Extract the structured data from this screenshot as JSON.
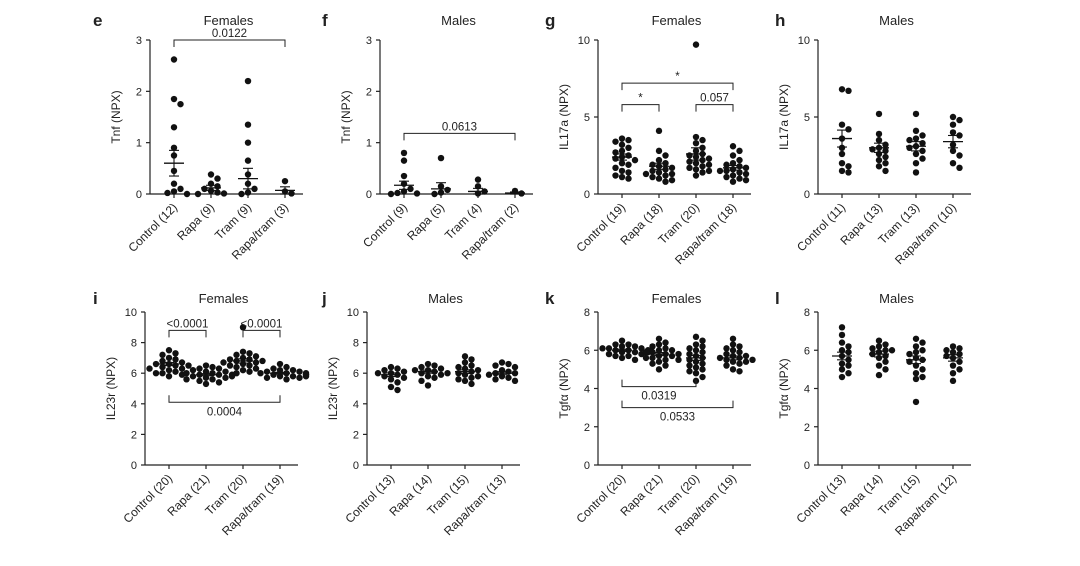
{
  "chart_data": [
    {
      "panel": "e",
      "title": "Females",
      "type": "scatter",
      "ylabel": "Tnf (NPX)",
      "ylim": [
        0,
        3
      ],
      "yticks": [
        0,
        1,
        2,
        3
      ],
      "categories": [
        "Control (12)",
        "Rapa (9)",
        "Tram (9)",
        "Rapa/tram (3)"
      ],
      "values": [
        [
          2.62,
          1.85,
          1.75,
          1.3,
          0.9,
          0.75,
          0.45,
          0.2,
          0.1,
          0.05,
          0.02,
          0.0
        ],
        [
          0.38,
          0.3,
          0.2,
          0.15,
          0.1,
          0.06,
          0.03,
          0.01,
          0.0
        ],
        [
          2.2,
          1.35,
          1.0,
          0.65,
          0.38,
          0.2,
          0.1,
          0.03,
          0.0
        ],
        [
          0.25,
          0.05,
          0.01
        ]
      ],
      "means": [
        0.6,
        0.12,
        0.3,
        0.07
      ],
      "sems": [
        0.25,
        0.05,
        0.2,
        0.07
      ],
      "annotations": [
        {
          "from": 0,
          "to": 3,
          "label": "0.0122",
          "y": 3.0
        }
      ]
    },
    {
      "panel": "f",
      "title": "Males",
      "type": "scatter",
      "ylabel": "Tnf (NPX)",
      "ylim": [
        0,
        3
      ],
      "yticks": [
        0,
        1,
        2,
        3
      ],
      "categories": [
        "Control (9)",
        "Rapa (5)",
        "Tram (4)",
        "Rapa/tram (2)"
      ],
      "values": [
        [
          0.8,
          0.65,
          0.35,
          0.2,
          0.1,
          0.05,
          0.02,
          0.01,
          0.0
        ],
        [
          0.7,
          0.15,
          0.08,
          0.03,
          0.0
        ],
        [
          0.28,
          0.15,
          0.05,
          0.01
        ],
        [
          0.06,
          0.01
        ]
      ],
      "means": [
        0.17,
        0.1,
        0.05,
        0.02
      ],
      "sems": [
        0.08,
        0.12,
        0.06,
        0.02
      ],
      "annotations": [
        {
          "from": 0,
          "to": 3,
          "label": "0.0613",
          "y": 1.18
        }
      ]
    },
    {
      "panel": "g",
      "title": "Females",
      "type": "scatter",
      "ylabel": "IL17a (NPX)",
      "ylim": [
        0,
        10
      ],
      "yticks": [
        0,
        5,
        10
      ],
      "categories": [
        "Control (19)",
        "Rapa (18)",
        "Tram (20)",
        "Rapa/tram (18)"
      ],
      "values": [
        [
          3.6,
          3.5,
          3.4,
          3.2,
          3.0,
          2.8,
          2.7,
          2.5,
          2.4,
          2.3,
          2.2,
          2.0,
          1.9,
          1.7,
          1.5,
          1.4,
          1.2,
          1.1,
          1.0
        ],
        [
          4.1,
          2.8,
          2.5,
          2.2,
          2.0,
          1.9,
          1.8,
          1.7,
          1.6,
          1.5,
          1.4,
          1.3,
          1.3,
          1.2,
          1.1,
          1.0,
          0.9,
          0.8
        ],
        [
          9.7,
          3.7,
          3.5,
          3.3,
          3.0,
          2.8,
          2.6,
          2.5,
          2.4,
          2.3,
          2.2,
          2.1,
          2.0,
          1.9,
          1.8,
          1.7,
          1.6,
          1.5,
          1.4,
          1.2
        ],
        [
          3.1,
          2.8,
          2.5,
          2.2,
          2.0,
          1.9,
          1.8,
          1.7,
          1.6,
          1.5,
          1.5,
          1.4,
          1.3,
          1.2,
          1.1,
          1.0,
          0.9,
          0.8
        ]
      ],
      "means": [
        2.4,
        1.8,
        2.6,
        1.7
      ],
      "sems": [
        0.2,
        0.2,
        0.4,
        0.15
      ],
      "annotations": [
        {
          "from": 0,
          "to": 1,
          "label": "*",
          "y": 5.8
        },
        {
          "from": 0,
          "to": 3,
          "label": "*",
          "y": 7.2
        },
        {
          "from": 2,
          "to": 3,
          "label": "0.057",
          "y": 5.8
        }
      ]
    },
    {
      "panel": "h",
      "title": "Males",
      "type": "scatter",
      "ylabel": "IL17a (NPX)",
      "ylim": [
        0,
        10
      ],
      "yticks": [
        0,
        5,
        10
      ],
      "categories": [
        "Control (11)",
        "Rapa (13)",
        "Tram (13)",
        "Rapa/tram (10)"
      ],
      "values": [
        [
          6.8,
          6.7,
          4.5,
          4.2,
          3.6,
          3.0,
          2.6,
          2.0,
          1.8,
          1.5,
          1.4
        ],
        [
          5.2,
          3.9,
          3.5,
          3.2,
          3.0,
          2.9,
          2.8,
          2.6,
          2.4,
          2.2,
          2.0,
          1.8,
          1.5
        ],
        [
          5.2,
          4.1,
          3.8,
          3.6,
          3.5,
          3.3,
          3.1,
          3.0,
          2.8,
          2.6,
          2.3,
          2.0,
          1.4
        ],
        [
          5.0,
          4.8,
          4.5,
          4.0,
          3.8,
          3.2,
          2.8,
          2.5,
          2.0,
          1.7
        ]
      ],
      "means": [
        3.6,
        3.0,
        3.1,
        3.4
      ],
      "sems": [
        0.55,
        0.3,
        0.3,
        0.4
      ],
      "annotations": []
    },
    {
      "panel": "i",
      "title": "Females",
      "type": "scatter",
      "ylabel": "IL23r (NPX)",
      "ylim": [
        0,
        10
      ],
      "yticks": [
        0,
        2,
        4,
        6,
        8,
        10
      ],
      "categories": [
        "Control (20)",
        "Rapa (21)",
        "Tram (20)",
        "Rapa/tram (19)"
      ],
      "values": [
        [
          7.5,
          7.3,
          7.2,
          7.0,
          6.9,
          6.8,
          6.7,
          6.6,
          6.6,
          6.5,
          6.5,
          6.4,
          6.3,
          6.3,
          6.2,
          6.1,
          6.0,
          6.0,
          5.9,
          5.8
        ],
        [
          6.5,
          6.4,
          6.3,
          6.3,
          6.2,
          6.1,
          6.1,
          6.0,
          6.0,
          5.9,
          5.9,
          5.9,
          5.8,
          5.8,
          5.7,
          5.7,
          5.6,
          5.6,
          5.5,
          5.4,
          5.3
        ],
        [
          9.0,
          7.4,
          7.3,
          7.2,
          7.1,
          7.0,
          6.9,
          6.9,
          6.8,
          6.8,
          6.7,
          6.7,
          6.6,
          6.5,
          6.5,
          6.4,
          6.3,
          6.2,
          6.1,
          6.0
        ],
        [
          6.6,
          6.4,
          6.3,
          6.2,
          6.2,
          6.1,
          6.1,
          6.0,
          6.0,
          6.0,
          5.9,
          5.9,
          5.9,
          5.8,
          5.8,
          5.8,
          5.7,
          5.7,
          5.6
        ]
      ],
      "means": [
        6.6,
        5.9,
        6.8,
        6.0
      ],
      "sems": [
        0.1,
        0.07,
        0.14,
        0.06
      ],
      "annotations": [
        {
          "from": 0,
          "to": 1,
          "label": "<0.0001",
          "y": 8.8
        },
        {
          "from": 2,
          "to": 3,
          "label": "<0.0001",
          "y": 8.8
        },
        {
          "from": 0,
          "to": 3,
          "label": "0.0004",
          "y": 4.1,
          "below": true
        }
      ]
    },
    {
      "panel": "j",
      "title": "Males",
      "type": "scatter",
      "ylabel": "IL23r (NPX)",
      "ylim": [
        0,
        10
      ],
      "yticks": [
        0,
        2,
        4,
        6,
        8,
        10
      ],
      "categories": [
        "Control (13)",
        "Rapa (14)",
        "Tram (15)",
        "Rapa/tram (13)"
      ],
      "values": [
        [
          6.4,
          6.3,
          6.2,
          6.1,
          6.0,
          6.0,
          5.9,
          5.8,
          5.7,
          5.6,
          5.4,
          5.1,
          4.9
        ],
        [
          6.6,
          6.5,
          6.4,
          6.3,
          6.2,
          6.2,
          6.1,
          6.0,
          6.0,
          5.9,
          5.8,
          5.7,
          5.5,
          5.2
        ],
        [
          7.1,
          6.9,
          6.7,
          6.5,
          6.4,
          6.3,
          6.2,
          6.1,
          6.0,
          5.9,
          5.8,
          5.7,
          5.6,
          5.5,
          5.3
        ],
        [
          6.7,
          6.6,
          6.5,
          6.4,
          6.2,
          6.1,
          6.0,
          6.0,
          5.9,
          5.8,
          5.7,
          5.6,
          5.5
        ]
      ],
      "means": [
        5.9,
        6.1,
        6.1,
        6.0
      ],
      "sems": [
        0.12,
        0.1,
        0.12,
        0.1
      ],
      "annotations": []
    },
    {
      "panel": "k",
      "title": "Females",
      "type": "scatter",
      "ylabel": "Tgfα (NPX)",
      "ylim": [
        0,
        8
      ],
      "yticks": [
        0,
        2,
        4,
        6,
        8
      ],
      "categories": [
        "Control (20)",
        "Rapa (21)",
        "Tram (20)",
        "Rapa/tram (19)"
      ],
      "values": [
        [
          6.5,
          6.3,
          6.3,
          6.2,
          6.2,
          6.1,
          6.1,
          6.1,
          6.0,
          6.0,
          6.0,
          5.9,
          5.9,
          5.9,
          5.8,
          5.8,
          5.7,
          5.7,
          5.6,
          5.5
        ],
        [
          6.6,
          6.4,
          6.3,
          6.2,
          6.1,
          6.0,
          6.0,
          5.9,
          5.9,
          5.8,
          5.8,
          5.7,
          5.7,
          5.6,
          5.6,
          5.5,
          5.5,
          5.4,
          5.3,
          5.2,
          5.0
        ],
        [
          6.7,
          6.5,
          6.3,
          6.2,
          6.1,
          6.0,
          5.9,
          5.8,
          5.7,
          5.6,
          5.5,
          5.4,
          5.3,
          5.2,
          5.1,
          5.0,
          4.9,
          4.8,
          4.6,
          4.4
        ],
        [
          6.6,
          6.3,
          6.2,
          6.1,
          6.0,
          5.9,
          5.8,
          5.7,
          5.7,
          5.6,
          5.6,
          5.5,
          5.5,
          5.4,
          5.4,
          5.3,
          5.2,
          5.0,
          4.9
        ]
      ],
      "means": [
        6.0,
        5.8,
        5.6,
        5.6
      ],
      "sems": [
        0.06,
        0.08,
        0.13,
        0.1
      ],
      "annotations": [
        {
          "from": 0,
          "to": 2,
          "label": "0.0319",
          "y": 4.1,
          "below": true
        },
        {
          "from": 0,
          "to": 3,
          "label": "0.0533",
          "y": 3.0,
          "below": true
        }
      ]
    },
    {
      "panel": "l",
      "title": "Males",
      "type": "scatter",
      "ylabel": "Tgfα (NPX)",
      "ylim": [
        0,
        8
      ],
      "yticks": [
        0,
        2,
        4,
        6,
        8
      ],
      "categories": [
        "Control (13)",
        "Rapa (14)",
        "Tram (15)",
        "Rapa/tram (12)"
      ],
      "values": [
        [
          7.2,
          6.8,
          6.4,
          6.2,
          6.0,
          5.9,
          5.7,
          5.5,
          5.3,
          5.2,
          5.0,
          4.8,
          4.6
        ],
        [
          6.5,
          6.3,
          6.2,
          6.1,
          6.0,
          6.0,
          5.9,
          5.8,
          5.7,
          5.6,
          5.4,
          5.2,
          5.0,
          4.7
        ],
        [
          6.6,
          6.4,
          6.2,
          6.0,
          5.9,
          5.8,
          5.6,
          5.5,
          5.4,
          5.2,
          5.0,
          4.8,
          4.6,
          4.5,
          3.3
        ],
        [
          6.2,
          6.1,
          6.0,
          5.9,
          5.8,
          5.7,
          5.6,
          5.4,
          5.2,
          5.0,
          4.8,
          4.4
        ]
      ],
      "means": [
        5.7,
        5.8,
        5.5,
        5.6
      ],
      "sems": [
        0.2,
        0.15,
        0.2,
        0.17
      ],
      "annotations": []
    }
  ]
}
